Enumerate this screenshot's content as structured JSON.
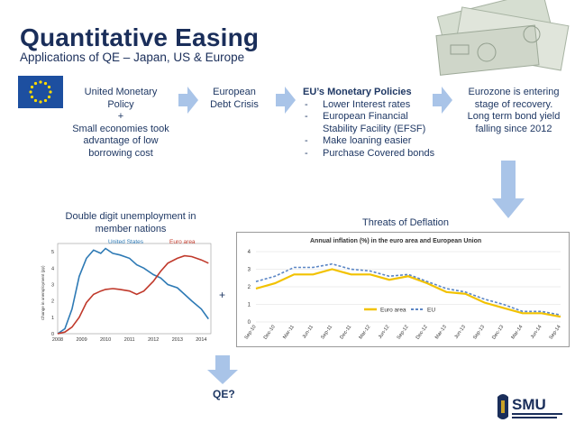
{
  "header": {
    "title": "Quantitative Easing",
    "subtitle": "Applications of QE – Japan, US & Europe"
  },
  "flow": {
    "box1": {
      "line1": "United Monetary",
      "line2": "Policy",
      "line3": "+",
      "line4": "Small economies took",
      "line5": "advantage of low",
      "line6": "borrowing cost"
    },
    "box2": {
      "line1": "European",
      "line2": "Debt Crisis"
    },
    "box3": {
      "heading": "EU’s Monetary Policies",
      "items": [
        "Lower Interest rates",
        "European Financial Stability Facility (EFSF)",
        "Make loaning easier",
        "Purchase Covered bonds"
      ]
    },
    "box4": {
      "line1": "Eurozone is entering",
      "line2": "stage of recovery.",
      "line3": "Long term bond yield",
      "line4": "falling since 2012"
    }
  },
  "labels": {
    "unemployment": "Double digit unemployment in member nations",
    "deflation": "Threats of Deflation",
    "plus": "+",
    "qe_question": "QE?"
  },
  "colors": {
    "title": "#1a2e5a",
    "arrow": "#a9c4e8",
    "us_line": "#2e7ab5",
    "euro_line": "#c0392b",
    "euro_area_line": "#f2c200",
    "eu_line": "#5b86c5"
  },
  "chart_data": [
    {
      "type": "line",
      "title": "",
      "ylabel": "Change in unemployment (pp)",
      "xlabel": "",
      "x": [
        2008,
        2009,
        2010,
        2011,
        2012,
        2013,
        2014
      ],
      "xticks": [
        "2008",
        "2009",
        "2010",
        "2011",
        "2012",
        "2013",
        "2014"
      ],
      "yticks": [
        "0",
        "1",
        "2",
        "3",
        "4",
        "5"
      ],
      "ylim": [
        0,
        5.5
      ],
      "xlim": [
        2008,
        2014.4
      ],
      "series": [
        {
          "name": "United States",
          "x": [
            2008,
            2008.3,
            2008.6,
            2008.9,
            2009.2,
            2009.5,
            2009.8,
            2010,
            2010.3,
            2010.6,
            2011,
            2011.3,
            2011.6,
            2012,
            2012.3,
            2012.6,
            2013,
            2013.3,
            2013.6,
            2014,
            2014.3
          ],
          "values": [
            0,
            0.3,
            1.5,
            3.5,
            4.6,
            5.1,
            4.9,
            5.2,
            4.9,
            4.8,
            4.6,
            4.2,
            4.0,
            3.6,
            3.4,
            3.0,
            2.8,
            2.4,
            2.0,
            1.5,
            0.9
          ]
        },
        {
          "name": "Euro area",
          "x": [
            2008,
            2008.3,
            2008.6,
            2008.9,
            2009.2,
            2009.5,
            2009.8,
            2010,
            2010.3,
            2010.6,
            2011,
            2011.3,
            2011.6,
            2012,
            2012.3,
            2012.6,
            2013,
            2013.3,
            2013.6,
            2014,
            2014.3
          ],
          "values": [
            0,
            0.1,
            0.4,
            1.0,
            1.9,
            2.4,
            2.6,
            2.7,
            2.75,
            2.7,
            2.6,
            2.4,
            2.6,
            3.2,
            3.8,
            4.3,
            4.6,
            4.75,
            4.7,
            4.5,
            4.3
          ]
        }
      ],
      "legend": "top"
    },
    {
      "type": "line",
      "title": "Annual inflation (%) in the euro area and European Union",
      "xlabel": "",
      "ylabel": "",
      "categories": [
        "Sep-10",
        "Dec-10",
        "Mar-11",
        "Jun-11",
        "Sep-11",
        "Dec-11",
        "Mar-12",
        "Jun-12",
        "Sep-12",
        "Dec-12",
        "Mar-13",
        "Jun-13",
        "Sep-13",
        "Dec-13",
        "Mar-14",
        "Jun-14",
        "Sep-14"
      ],
      "yticks": [
        "0",
        "1",
        "2",
        "3",
        "4"
      ],
      "ylim": [
        0,
        4
      ],
      "series": [
        {
          "name": "Euro area",
          "values": [
            1.9,
            2.2,
            2.7,
            2.7,
            3.0,
            2.7,
            2.7,
            2.4,
            2.6,
            2.2,
            1.7,
            1.6,
            1.1,
            0.8,
            0.5,
            0.5,
            0.3
          ]
        },
        {
          "name": "EU",
          "values": [
            2.3,
            2.6,
            3.1,
            3.1,
            3.3,
            3.0,
            2.9,
            2.6,
            2.7,
            2.3,
            1.9,
            1.7,
            1.3,
            1.0,
            0.6,
            0.6,
            0.4
          ]
        }
      ],
      "legend": "bottom-center"
    }
  ]
}
